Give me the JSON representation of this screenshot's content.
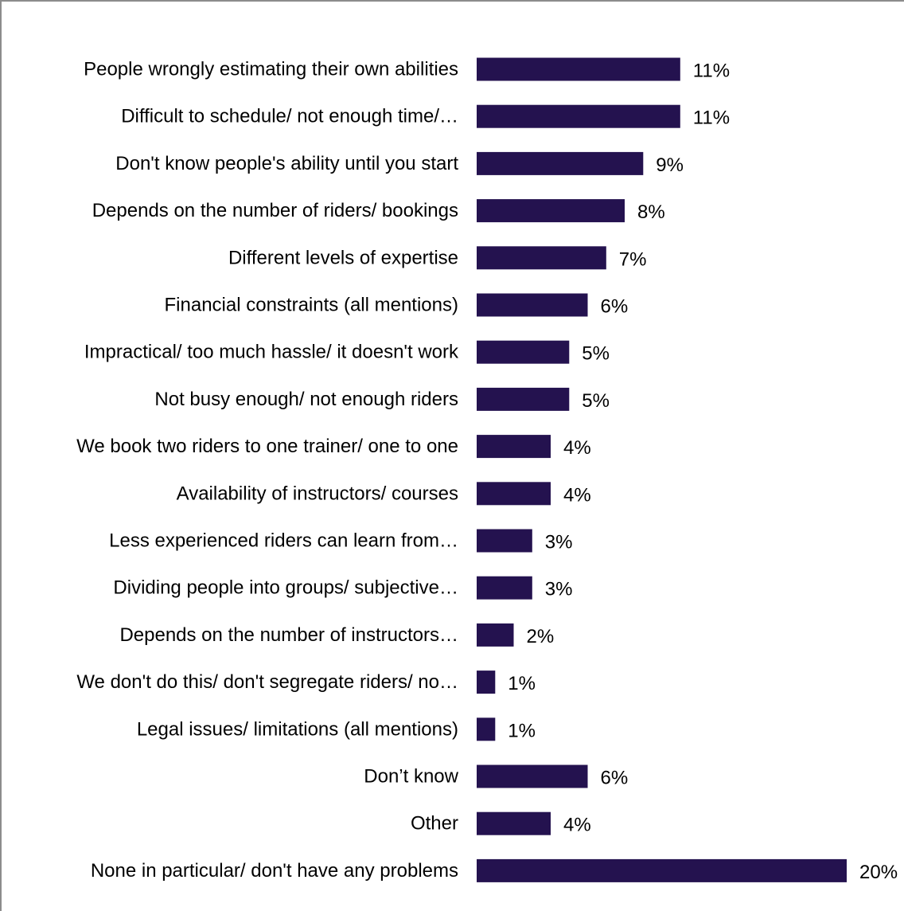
{
  "chart_data": {
    "type": "bar",
    "orientation": "horizontal",
    "categories": [
      "People wrongly estimating their own abilities",
      "Difficult to schedule/ not enough time/…",
      "Don't know people's ability until you start",
      "Depends on the number of riders/ bookings",
      "Different levels of expertise",
      "Financial constraints (all mentions)",
      "Impractical/ too much hassle/ it doesn't work",
      "Not busy enough/ not enough riders",
      "We book two riders to one trainer/ one to one",
      "Availability of instructors/ courses",
      "Less experienced riders can learn from…",
      "Dividing people into groups/ subjective…",
      "Depends on the number of instructors…",
      "We don't do this/ don't segregate riders/ no…",
      "Legal issues/ limitations (all mentions)",
      "Don’t know",
      "Other",
      "None in particular/ don't have any problems"
    ],
    "values": [
      11,
      11,
      9,
      8,
      7,
      6,
      5,
      5,
      4,
      4,
      3,
      3,
      2,
      1,
      1,
      6,
      4,
      20
    ],
    "value_labels": [
      "11%",
      "11%",
      "9%",
      "8%",
      "7%",
      "6%",
      "5%",
      "5%",
      "4%",
      "4%",
      "3%",
      "3%",
      "2%",
      "1%",
      "1%",
      "6%",
      "4%",
      "20%"
    ],
    "xlim": [
      0,
      20
    ],
    "grid": false,
    "legend": "none",
    "bar_color": "#24124f"
  }
}
